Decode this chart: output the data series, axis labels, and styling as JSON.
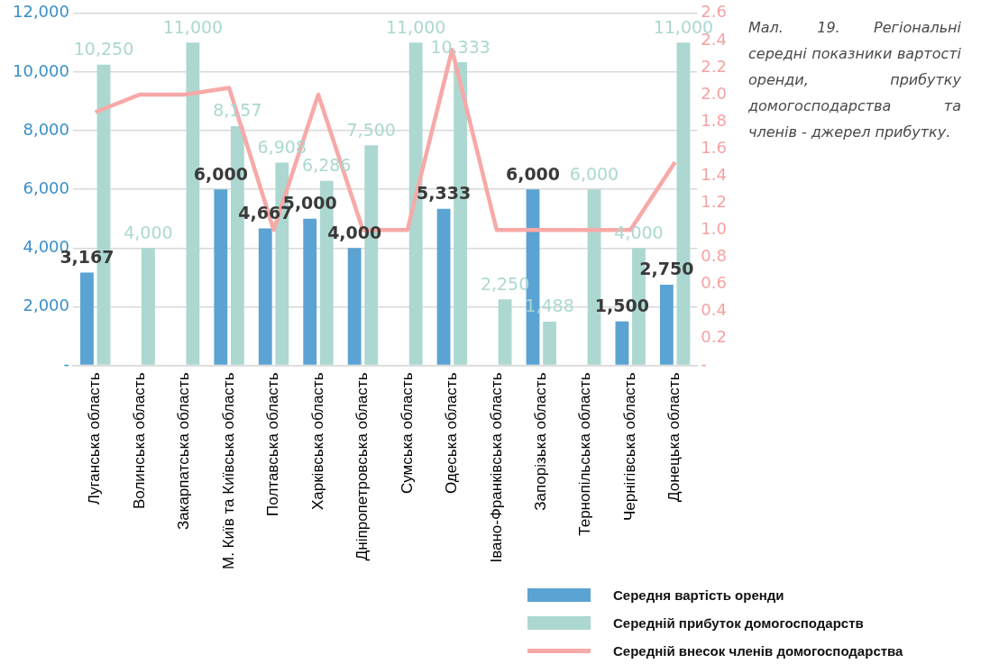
{
  "chart_data": {
    "type": "bar",
    "categories": [
      "Луганська область",
      "Волинська область",
      "Закарпатська область",
      "М. Київ та Київська область",
      "Полтавська область",
      "Харківська область",
      "Дніпропетровська область",
      "Сумська область",
      "Одеська область",
      "Івано-Франківська область",
      "Запорізька область",
      "Тернопільська область",
      "Чернігівська область",
      "Донецька область"
    ],
    "series": [
      {
        "name": "Середня вартість оренди",
        "color": "#5ba3d3",
        "values": [
          3167,
          null,
          null,
          6000,
          4667,
          5000,
          4000,
          null,
          5333,
          null,
          6000,
          null,
          1500,
          2750
        ],
        "value_labels": [
          "3,167",
          null,
          null,
          "6,000",
          "4,667",
          "5,000",
          "4,000",
          null,
          "5,333",
          null,
          "6,000",
          null,
          "1,500",
          "2,750"
        ]
      },
      {
        "name": "Середній прибуток домогосподарств",
        "color": "#acd8d1",
        "values": [
          10250,
          4000,
          11000,
          8157,
          6908,
          6286,
          7500,
          11000,
          10333,
          2250,
          1488,
          6000,
          4000,
          11000
        ],
        "value_labels": [
          "10,250",
          "4,000",
          "11,000",
          "8,157",
          "6,908",
          "6,286",
          "7,500",
          "11,000",
          "10,333",
          "2,250",
          "1,488",
          "6,000",
          "4,000",
          "11,000"
        ]
      },
      {
        "name": "Середній внесок членів домогосподарства",
        "type": "line",
        "axis": "y2",
        "color": "#f7a9a8",
        "values": [
          1.87,
          2.0,
          2.0,
          2.05,
          1.0,
          2.0,
          1.0,
          1.0,
          2.33,
          1.0,
          1.0,
          1.0,
          1.0,
          1.5
        ]
      }
    ],
    "ylim": [
      0,
      12000
    ],
    "yticks": [
      {
        "value": 0,
        "label": "-"
      },
      {
        "value": 2000,
        "label": "2,000"
      },
      {
        "value": 4000,
        "label": "4,000"
      },
      {
        "value": 6000,
        "label": "6,000"
      },
      {
        "value": 8000,
        "label": "8,000"
      },
      {
        "value": 10000,
        "label": "10,000"
      },
      {
        "value": 12000,
        "label": "12,000"
      }
    ],
    "y2lim": [
      0,
      2.6
    ],
    "y2ticks": [
      {
        "value": 0,
        "label": "-"
      },
      0.2,
      0.4,
      0.6,
      0.8,
      {
        "value": 1,
        "label": "1.0"
      },
      1.2,
      1.4,
      1.6,
      1.8,
      {
        "value": 2,
        "label": "2.0"
      },
      2.2,
      2.4,
      2.6
    ],
    "grid": "y",
    "legend": "bottom right",
    "marker": "none",
    "annotations": [
      "Мал. 19. Регіональні середні показники вартості оренди, прибутку домогосподарства та членів - джерел прибутку."
    ]
  }
}
